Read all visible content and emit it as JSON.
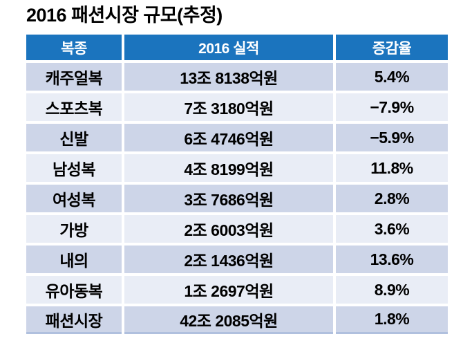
{
  "title": "2016 패션시장 규모(추정)",
  "colors": {
    "header_bg": "#1B74BE",
    "header_text": "#FFFFFF",
    "row_odd_bg": "#CDD5E8",
    "row_even_bg": "#E9EDF6",
    "body_text": "#000000",
    "bottom_line": "#B0C0DE"
  },
  "table": {
    "columns": [
      "복종",
      "2016 실적",
      "증감율"
    ],
    "rows": [
      [
        "캐주얼복",
        "13조 8138억원",
        "5.4%"
      ],
      [
        "스포츠복",
        "7조 3180억원",
        "−7.9%"
      ],
      [
        "신발",
        "6조 4746억원",
        "−5.9%"
      ],
      [
        "남성복",
        "4조 8199억원",
        "11.8%"
      ],
      [
        "여성복",
        "3조 7686억원",
        "2.8%"
      ],
      [
        "가방",
        "2조 6003억원",
        "3.6%"
      ],
      [
        "내의",
        "2조 1436억원",
        "13.6%"
      ],
      [
        "유아동복",
        "1조 2697억원",
        "8.9%"
      ],
      [
        "패션시장",
        "42조 2085억원",
        "1.8%"
      ]
    ]
  },
  "chart_data": {
    "type": "table",
    "title": "2016 패션시장 규모(추정)",
    "columns": [
      "복종",
      "2016 실적",
      "증감율"
    ],
    "categories": [
      "캐주얼복",
      "스포츠복",
      "신발",
      "남성복",
      "여성복",
      "가방",
      "내의",
      "유아동복",
      "패션시장"
    ],
    "series": [
      {
        "name": "2016 실적(억원)",
        "values": [
          138138,
          73180,
          64746,
          48199,
          37686,
          26003,
          21436,
          12697,
          422085
        ],
        "labels": [
          "13조 8138억원",
          "7조 3180억원",
          "6조 4746억원",
          "4조 8199억원",
          "3조 7686억원",
          "2조 6003억원",
          "2조 1436억원",
          "1조 2697억원",
          "42조 2085억원"
        ]
      },
      {
        "name": "증감율(%)",
        "values": [
          5.4,
          -7.9,
          -5.9,
          11.8,
          2.8,
          3.6,
          13.6,
          8.9,
          1.8
        ],
        "labels": [
          "5.4%",
          "−7.9%",
          "−5.9%",
          "11.8%",
          "2.8%",
          "3.6%",
          "13.6%",
          "8.9%",
          "1.8%"
        ]
      }
    ],
    "legend_position": "none",
    "grid": false
  }
}
